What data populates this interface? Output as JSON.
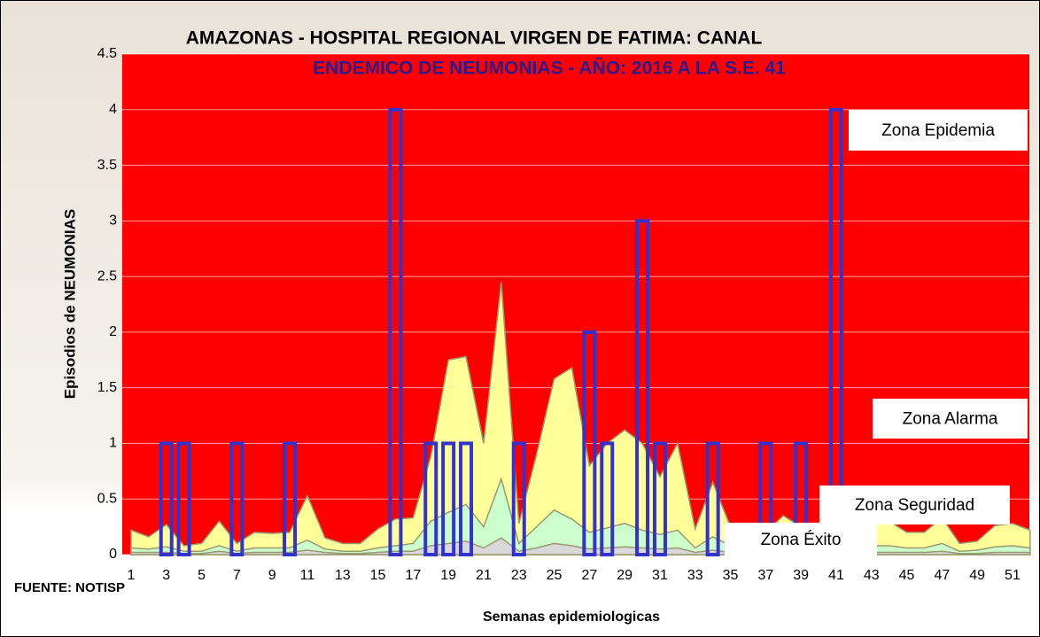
{
  "chart_data": {
    "type": "bar",
    "title": "AMAZONAS - HOSPITAL REGIONAL VIRGEN DE FATIMA: CANAL",
    "subtitle": "ENDEMICO DE NEUMONIAS -  AÑO:  2016 A LA S.E. 41",
    "x_label": "Semanas epidemiologicas",
    "y_label": "Episodios de NEUMONIAS",
    "source": "FUENTE: NOTISP",
    "plot_color": "#ff0000",
    "grid": true,
    "categories": [
      1,
      null,
      3,
      null,
      5,
      null,
      7,
      null,
      9,
      null,
      11,
      null,
      13,
      null,
      15,
      null,
      17,
      null,
      19,
      null,
      21,
      null,
      23,
      null,
      25,
      null,
      27,
      null,
      29,
      null,
      31,
      null,
      33,
      null,
      35,
      null,
      37,
      null,
      39,
      null,
      41,
      null,
      43,
      null,
      45,
      null,
      47,
      null,
      49,
      null,
      51,
      null
    ],
    "values": [
      0,
      0,
      1,
      1,
      0,
      0,
      1,
      0,
      0,
      1,
      0,
      0,
      0,
      0,
      0,
      4,
      0,
      1,
      1,
      1,
      0,
      0,
      1,
      0,
      0,
      0,
      2,
      1,
      0,
      3,
      1,
      0,
      0,
      1,
      0,
      0,
      1,
      0,
      1,
      0,
      4,
      0,
      0,
      0,
      0,
      0,
      0,
      0,
      0,
      0,
      0,
      0
    ],
    "color": "#3333cc",
    "areas": [
      {
        "color": "#ffff99",
        "values": [
          0.22,
          0.16,
          0.27,
          0.08,
          0.1,
          0.3,
          0.1,
          0.2,
          0.19,
          0.2,
          0.53,
          0.15,
          0.1,
          0.1,
          0.23,
          0.32,
          0.33,
          0.88,
          1.75,
          1.78,
          1.0,
          2.45,
          0.28,
          0.9,
          1.58,
          1.68,
          0.8,
          1.0,
          1.12,
          1.0,
          0.7,
          1.0,
          0.23,
          0.65,
          0.25,
          0.28,
          0.2,
          0.35,
          0.25,
          0.28,
          0.35,
          0.3,
          0.28,
          0.3,
          0.2,
          0.2,
          0.33,
          0.1,
          0.12,
          0.26,
          0.28,
          0.22
        ]
      },
      {
        "color": "#ccffcc",
        "values": [
          0.06,
          0.05,
          0.07,
          0.03,
          0.03,
          0.08,
          0.03,
          0.06,
          0.06,
          0.06,
          0.13,
          0.05,
          0.03,
          0.03,
          0.06,
          0.08,
          0.1,
          0.3,
          0.38,
          0.45,
          0.25,
          0.68,
          0.1,
          0.25,
          0.4,
          0.32,
          0.2,
          0.24,
          0.28,
          0.22,
          0.18,
          0.22,
          0.06,
          0.16,
          0.08,
          0.08,
          0.06,
          0.1,
          0.07,
          0.08,
          0.1,
          0.08,
          0.08,
          0.08,
          0.06,
          0.06,
          0.1,
          0.03,
          0.04,
          0.07,
          0.08,
          0.06
        ]
      },
      {
        "color": "#d9d9d9",
        "values": [
          0.02,
          0.02,
          0.02,
          0.01,
          0.01,
          0.03,
          0.01,
          0.02,
          0.02,
          0.02,
          0.04,
          0.02,
          0.01,
          0.01,
          0.02,
          0.03,
          0.03,
          0.08,
          0.1,
          0.12,
          0.06,
          0.15,
          0.03,
          0.06,
          0.1,
          0.08,
          0.05,
          0.06,
          0.07,
          0.06,
          0.05,
          0.06,
          0.02,
          0.04,
          0.02,
          0.02,
          0.02,
          0.03,
          0.02,
          0.02,
          0.03,
          0.02,
          0.02,
          0.02,
          0.02,
          0.02,
          0.03,
          0.01,
          0.01,
          0.02,
          0.02,
          0.02
        ]
      }
    ],
    "annotations": [
      "Zona Epidemia",
      "Zona Alarma",
      "Zona Seguridad",
      "Zona Éxito"
    ],
    "ylim": [
      0,
      4.5
    ],
    "yticks": [
      0,
      0.5,
      1,
      1.5,
      2,
      2.5,
      3,
      3.5,
      4,
      4.5
    ]
  }
}
